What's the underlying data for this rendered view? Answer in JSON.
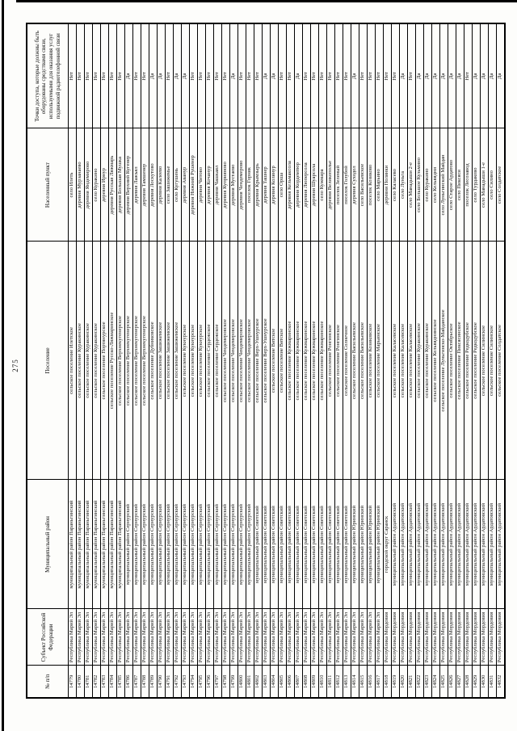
{
  "page_number": "275",
  "table": {
    "headers": {
      "num": "№ п/п",
      "subject": "Субъект Российской Федерации",
      "district": "Муниципальный район",
      "settlement": "Поселение",
      "locality": "Населенный пункт",
      "access": "Точки доступа, которые должны быть оборудованы средствами связи, используемыми для оказания услуг подвижной радиотелефонной связи"
    },
    "rows": [
      [
        "14779",
        "Республика Марий Эл",
        "муниципальный район Параньгинский",
        "сельское поселение Илетское",
        "село Илеть",
        "Нет"
      ],
      [
        "14780",
        "Республика Марий Эл",
        "муниципальный район Параньгинский",
        "сельское поселение Куракинское",
        "деревня Мурзанаево",
        "Нет"
      ],
      [
        "14781",
        "Республика Марий Эл",
        "муниципальный район Параньгинский",
        "сельское поселение Куракинское",
        "деревня Яндемирово",
        "Нет"
      ],
      [
        "14782",
        "Республика Марий Эл",
        "муниципальный район Параньгинский",
        "сельское поселение Куракинское",
        "село Куракино",
        "Нет"
      ],
      [
        "14783",
        "Республика Марий Эл",
        "муниципальный район Параньгинский",
        "сельское поселение Портянурское",
        "деревня Ирнур",
        "Нет"
      ],
      [
        "14784",
        "Республика Марий Эл",
        "муниципальный район Параньгинский",
        "сельское поселение Русско-Ляжмаринское",
        "деревня Русская Ляжмарь",
        "Нет"
      ],
      [
        "14785",
        "Республика Марий Эл",
        "муниципальный район Параньгинский",
        "сельское поселение Верхнекугенерское",
        "деревня Большая Мушка",
        "Нет"
      ],
      [
        "14786",
        "Республика Марий Эл",
        "муниципальный район Сернурский",
        "сельское поселение Верхнекугенерское",
        "деревня Верхний Кугенер",
        "Да"
      ],
      [
        "14787",
        "Республика Марий Эл",
        "муниципальный район Сернурский",
        "сельское поселение Верхнекугенерское",
        "деревня Лажъял",
        "Нет"
      ],
      [
        "14788",
        "Республика Марий Эл",
        "муниципальный район Сернурский",
        "сельское поселение Верхнекугенерское",
        "деревня Тамшенер",
        "Нет"
      ],
      [
        "14789",
        "Республика Марий Эл",
        "муниципальный район Сернурский",
        "сельское поселение Дубниковское",
        "деревня Лоскутово",
        "Да"
      ],
      [
        "14790",
        "Республика Марий Эл",
        "муниципальный район Сернурский",
        "сельское поселение Зашижемское",
        "деревня Калеево",
        "Да"
      ],
      [
        "14791",
        "Республика Марий Эл",
        "муниципальный район Сернурский",
        "сельское поселение Зашижемское",
        "село Зашижемье",
        "Нет"
      ],
      [
        "14792",
        "Республика Марий Эл",
        "муниципальный район Сернурский",
        "сельское поселение Зашижемское",
        "село Кугушень",
        "Да"
      ],
      [
        "14793",
        "Республика Марий Эл",
        "муниципальный район Сернурский",
        "сельское поселение Кукнурское",
        "деревня Аванур",
        "Да"
      ],
      [
        "14794",
        "Республика Марий Эл",
        "муниципальный район Сернурский",
        "сельское поселение Кукнурское",
        "деревня Нижний Рушенер",
        "Нет"
      ],
      [
        "14795",
        "Республика Марий Эл",
        "муниципальный район Сернурский",
        "сельское поселение Кукнурское",
        "деревня Читово",
        "Нет"
      ],
      [
        "14796",
        "Республика Марий Эл",
        "муниципальный район Сернурский",
        "сельское поселение Сердежское",
        "деревня Кочанур",
        "Нет"
      ],
      [
        "14797",
        "Республика Марий Эл",
        "муниципальный район Сернурский",
        "сельское поселение Сердежское",
        "деревня Чашкаял",
        "Нет"
      ],
      [
        "14798",
        "Республика Марий Эл",
        "муниципальный район Сернурский",
        "сельское поселение Чендемеровское",
        "деревня Куприяново",
        "Нет"
      ],
      [
        "14799",
        "Республика Марий Эл",
        "муниципальный район Сернурский",
        "сельское поселение Чендемеровское",
        "деревня Мустаево",
        "Да"
      ],
      [
        "14800",
        "Республика Марий Эл",
        "муниципальный район Сернурский",
        "сельское поселение Чендемеровское",
        "деревня Чендемерово",
        "Нет"
      ],
      [
        "14801",
        "Республика Марий Эл",
        "муниципальный район Сернурский",
        "сельское поселение Чендемеровское",
        "поселок Горняк",
        "Нет"
      ],
      [
        "14802",
        "Республика Марий Эл",
        "муниципальный район Советский",
        "сельское поселение Верх-Ушнурское",
        "деревня Крымзырь",
        "Нет"
      ],
      [
        "14803",
        "Республика Марий Эл",
        "муниципальный район Советский",
        "сельское поселение Верх-Ушнурское",
        "деревня Ташнер",
        "Да"
      ],
      [
        "14804",
        "Республика Марий Эл",
        "муниципальный район Советский",
        "сельское поселение Вятское",
        "деревня Колянур",
        "Да"
      ],
      [
        "14805",
        "Республика Марий Эл",
        "муниципальный район Советский",
        "сельское поселение Вятское",
        "село Орша",
        "Нет"
      ],
      [
        "14806",
        "Республика Марий Эл",
        "муниципальный район Советский",
        "сельское поселение Кужмаринское",
        "деревня Кельмаксола",
        "Нет"
      ],
      [
        "14807",
        "Республика Марий Эл",
        "муниципальный район Советский",
        "сельское поселение Кужмаринское",
        "деревня Кордемтюр",
        "Да"
      ],
      [
        "14808",
        "Республика Марий Эл",
        "муниципальный район Советский",
        "сельское поселение Кужмаринское",
        "деревня Люперсола",
        "Нет"
      ],
      [
        "14809",
        "Республика Марий Эл",
        "муниципальный район Советский",
        "сельское поселение Кужмаринское",
        "деревня Шуарсола",
        "Нет"
      ],
      [
        "14810",
        "Республика Марий Эл",
        "муниципальный район Советский",
        "сельское поселение Кужмаринское",
        "село Кужмара",
        "Нет"
      ],
      [
        "14811",
        "Республика Марий Эл",
        "муниципальный район Советский",
        "сельское поселение Ронгинское",
        "деревня Великополье",
        "Нет"
      ],
      [
        "14812",
        "Республика Марий Эл",
        "муниципальный район Советский",
        "сельское поселение Ронгинское",
        "поселок Зеленый",
        "Нет"
      ],
      [
        "14813",
        "Республика Марий Эл",
        "муниципальный район Советский",
        "сельское поселение Солнечное",
        "поселок Голубой",
        "Нет"
      ],
      [
        "14814",
        "Республика Марий Эл",
        "муниципальный район Юринский",
        "сельское поселение Васильевское",
        "деревня Суходол",
        "Да"
      ],
      [
        "14815",
        "Республика Марий Эл",
        "муниципальный район Юринский",
        "сельское поселение Васильевское",
        "село Васильевское",
        "Нет"
      ],
      [
        "14816",
        "Республика Марий Эл",
        "муниципальный район Юринский",
        "сельское поселение Козиковское",
        "поселок Козиково",
        "Нет"
      ],
      [
        "14817",
        "Республика Марий Эл",
        "муниципальный район Юринский",
        "сельское поселение Марьинское",
        "село Марьино",
        "Нет"
      ],
      [
        "14818",
        "Республика Мордовия",
        "городской округ Саранск",
        "",
        "деревня Полянки",
        "Нет"
      ],
      [
        "14819",
        "Республика Мордовия",
        "муниципальный район Ардатовский",
        "сельское поселение Каласевское",
        "село Каласево",
        "Нет"
      ],
      [
        "14820",
        "Республика Мордовия",
        "муниципальный район Ардатовский",
        "сельское поселение Каласевское",
        "село Луньга",
        "Да"
      ],
      [
        "14821",
        "Республика Мордовия",
        "муниципальный район Ардатовский",
        "сельское поселение Каласевское",
        "село Манадыши 2-е",
        "Нет"
      ],
      [
        "14822",
        "Республика Мордовия",
        "муниципальный район Ардатовский",
        "сельское поселение Куракинское",
        "село Большое Кузьмино",
        "Да"
      ],
      [
        "14823",
        "Республика Мордовия",
        "муниципальный район Ардатовский",
        "сельское поселение Куракинское",
        "село Куракино",
        "Да"
      ],
      [
        "14824",
        "Республика Мордовия",
        "муниципальный район Ардатовский",
        "сельское поселение Кельвяднинское",
        "село Кельвядни",
        "Да"
      ],
      [
        "14825",
        "Республика Мордовия",
        "муниципальный район Ардатовский",
        "сельское поселение Луньгинско-Майданское",
        "село Луньгинский Майдан",
        "Да"
      ],
      [
        "14826",
        "Республика Мордовия",
        "муниципальный район Ардатовский",
        "сельское поселение Октябрьское",
        "село Старое Ардатово",
        "Да"
      ],
      [
        "14827",
        "Республика Мордовия",
        "муниципальный район Ардатовский",
        "сельское поселение Пиксясинское",
        "село Пиксяси",
        "Да"
      ],
      [
        "14828",
        "Республика Мордовия",
        "муниципальный район Ардатовский",
        "сельское поселение Редкодубское",
        "поселок Лесозавод",
        "Нет"
      ],
      [
        "14829",
        "Республика Мордовия",
        "муниципальный район Ардатовский",
        "сельское поселение Редкодубское",
        "село Турдаково",
        "Да"
      ],
      [
        "14830",
        "Республика Мордовия",
        "муниципальный район Ардатовский",
        "сельское поселение Силинское",
        "село Манадыши 1-е",
        "Да"
      ],
      [
        "14831",
        "Республика Мордовия",
        "муниципальный район Ардатовский",
        "сельское поселение Силинское",
        "село Силино",
        "Да"
      ],
      [
        "14832",
        "Республика Мордовия",
        "муниципальный район Ардатовский",
        "сельское поселение Солдатское",
        "село Солдатское",
        "Да"
      ]
    ]
  }
}
